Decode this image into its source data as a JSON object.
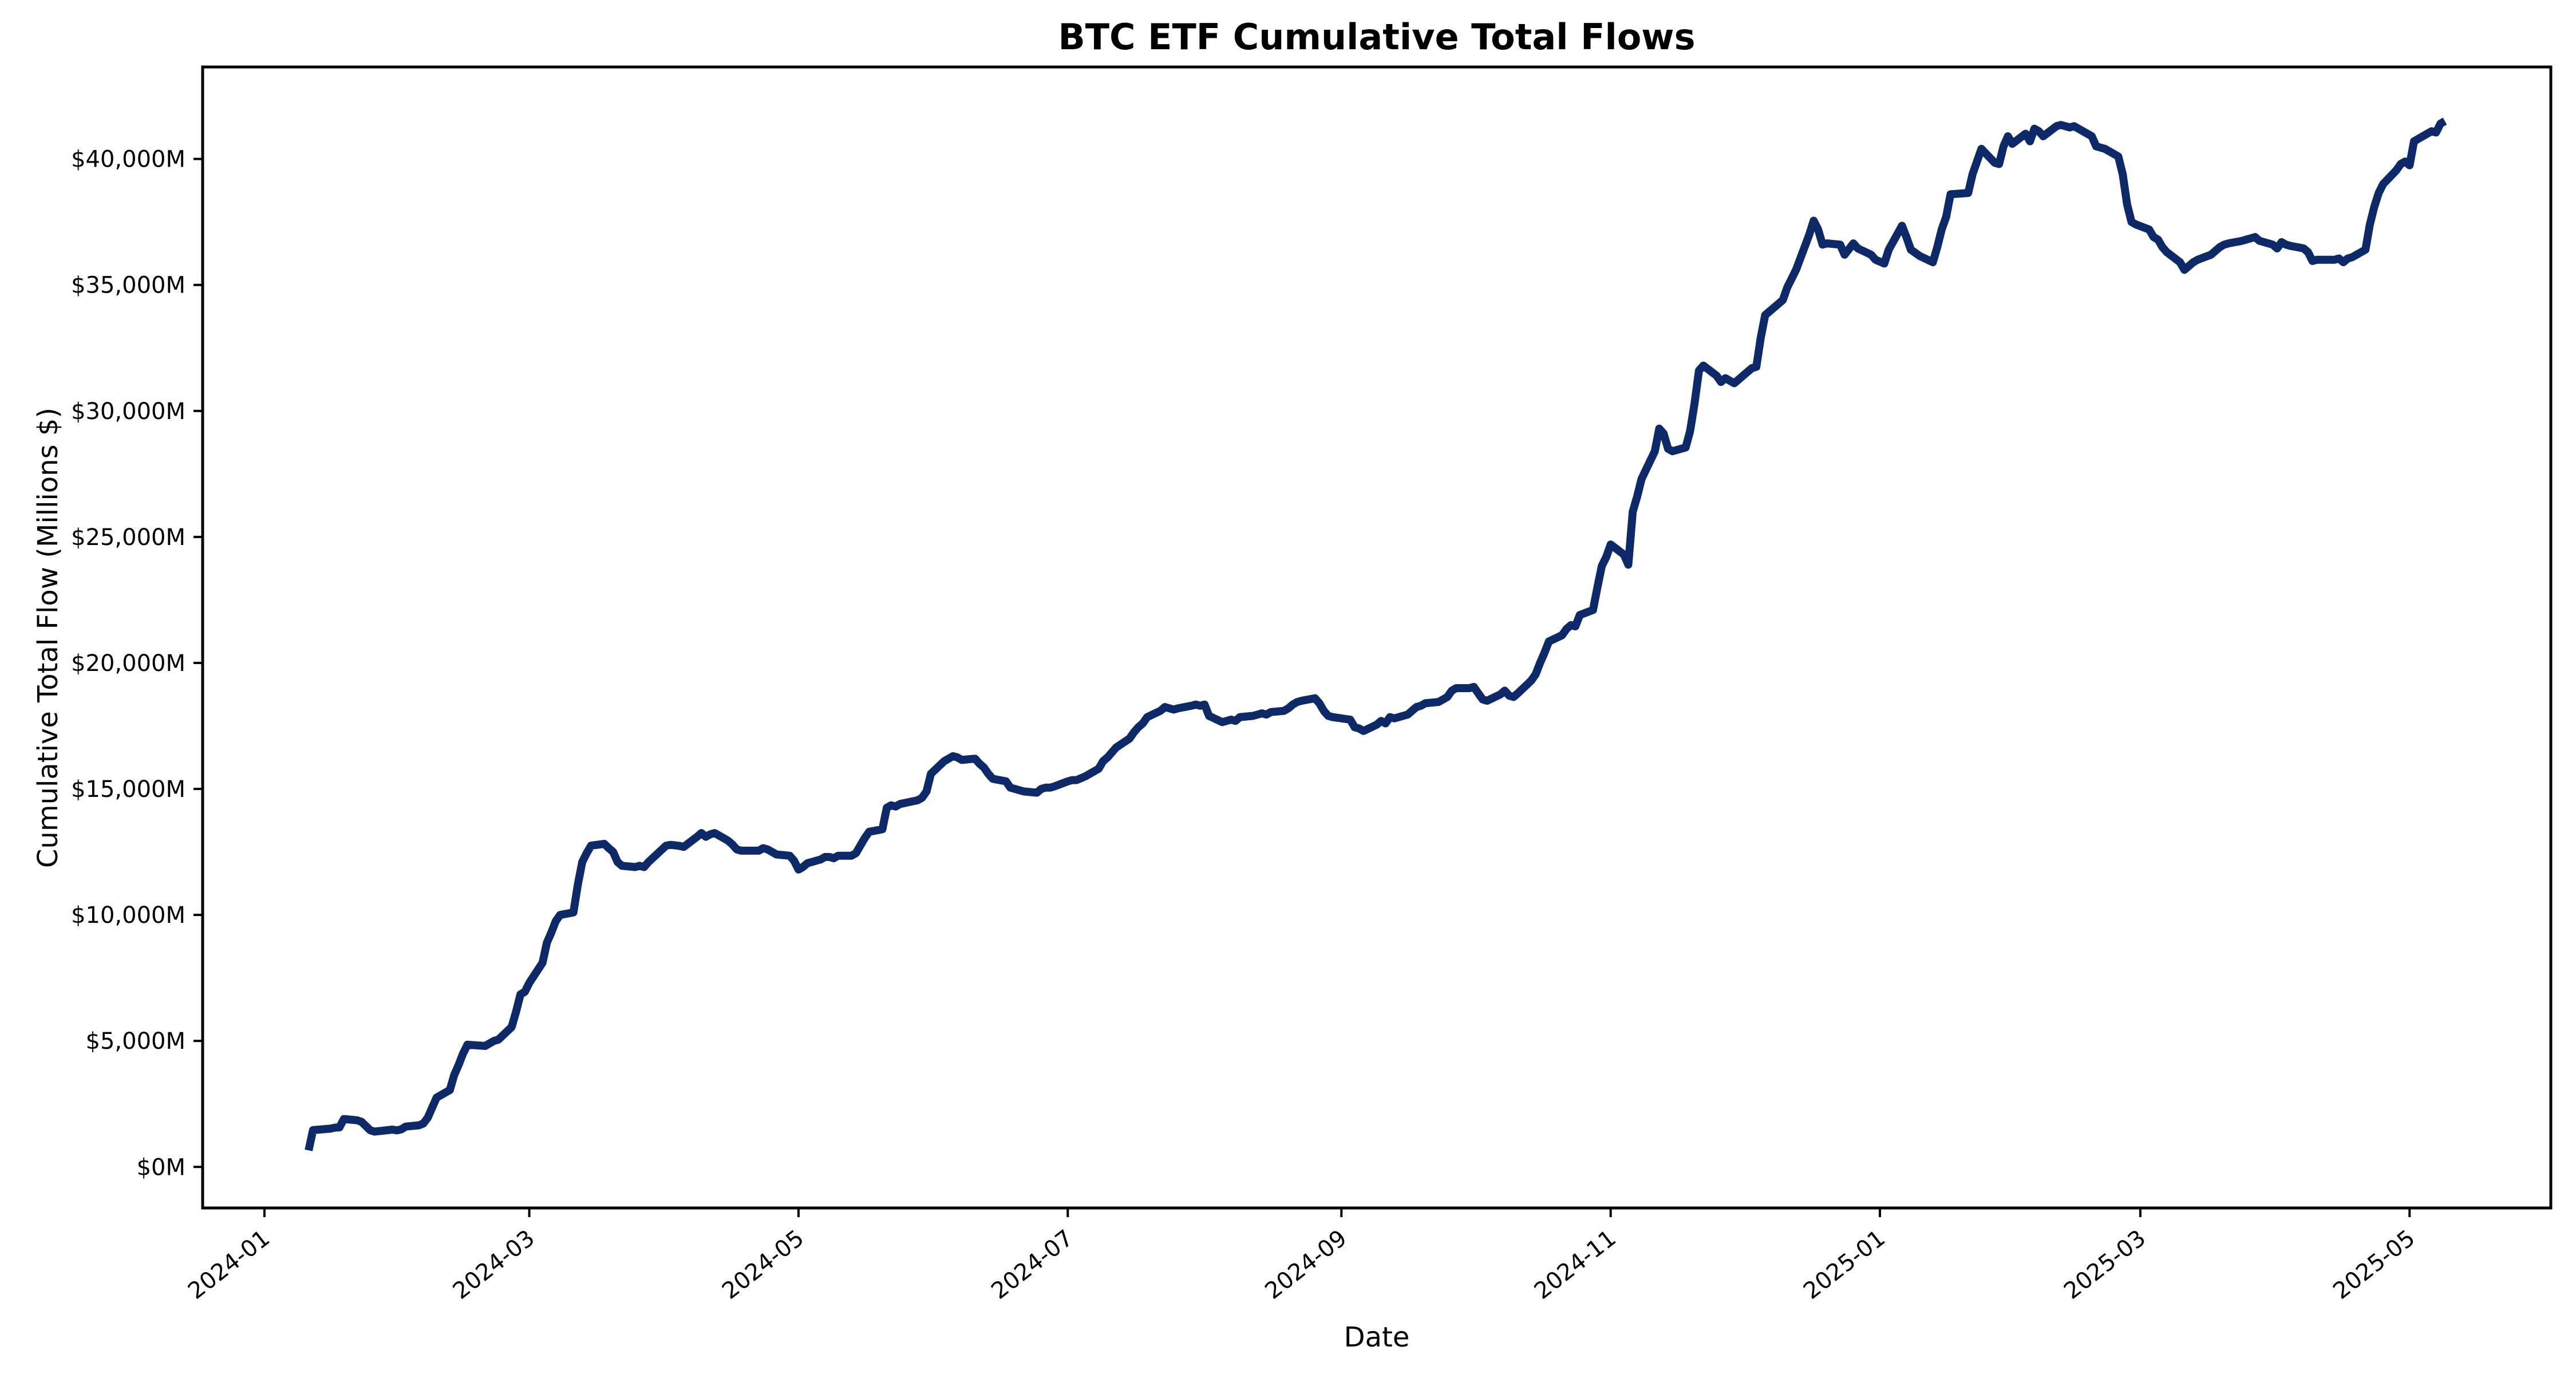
{
  "page": {
    "kind": "matplotlib-style line chart",
    "background": "#ffffff"
  },
  "chart_data": {
    "type": "line",
    "title": "BTC ETF Cumulative Total Flows",
    "xlabel": "Date",
    "ylabel": "Cumulative Total Flow (Millions $)",
    "series": [
      {
        "name": "Cumulative Total Flow",
        "color": "#0d2968"
      }
    ],
    "legend_position": "none",
    "grid": false,
    "axis_color": "#000000",
    "line_width": 14,
    "xlim": [
      "2023-12-18",
      "2025-06-02"
    ],
    "ylim": [
      -1630,
      43650
    ],
    "yticks": [
      {
        "value": 0,
        "label": "$0M"
      },
      {
        "value": 5000,
        "label": "$5,000M"
      },
      {
        "value": 10000,
        "label": "$10,000M"
      },
      {
        "value": 15000,
        "label": "$15,000M"
      },
      {
        "value": 20000,
        "label": "$20,000M"
      },
      {
        "value": 25000,
        "label": "$25,000M"
      },
      {
        "value": 30000,
        "label": "$30,000M"
      },
      {
        "value": 35000,
        "label": "$35,000M"
      },
      {
        "value": 40000,
        "label": "$40,000M"
      }
    ],
    "xticks": [
      {
        "date": "2024-01-01",
        "label": "2024-01"
      },
      {
        "date": "2024-03-01",
        "label": "2024-03"
      },
      {
        "date": "2024-05-01",
        "label": "2024-05"
      },
      {
        "date": "2024-07-01",
        "label": "2024-07"
      },
      {
        "date": "2024-09-01",
        "label": "2024-09"
      },
      {
        "date": "2024-11-01",
        "label": "2024-11"
      },
      {
        "date": "2025-01-01",
        "label": "2025-01"
      },
      {
        "date": "2025-03-01",
        "label": "2025-03"
      },
      {
        "date": "2025-05-01",
        "label": "2025-05"
      }
    ],
    "dates": [
      "2024-01-11",
      "2024-01-12",
      "2024-01-16",
      "2024-01-17",
      "2024-01-18",
      "2024-01-19",
      "2024-01-22",
      "2024-01-23",
      "2024-01-24",
      "2024-01-25",
      "2024-01-26",
      "2024-01-29",
      "2024-01-30",
      "2024-01-31",
      "2024-02-01",
      "2024-02-02",
      "2024-02-05",
      "2024-02-06",
      "2024-02-07",
      "2024-02-08",
      "2024-02-09",
      "2024-02-12",
      "2024-02-13",
      "2024-02-14",
      "2024-02-15",
      "2024-02-16",
      "2024-02-20",
      "2024-02-21",
      "2024-02-22",
      "2024-02-23",
      "2024-02-26",
      "2024-02-27",
      "2024-02-28",
      "2024-02-29",
      "2024-03-01",
      "2024-03-04",
      "2024-03-05",
      "2024-03-06",
      "2024-03-07",
      "2024-03-08",
      "2024-03-11",
      "2024-03-12",
      "2024-03-13",
      "2024-03-14",
      "2024-03-15",
      "2024-03-18",
      "2024-03-19",
      "2024-03-20",
      "2024-03-21",
      "2024-03-22",
      "2024-03-25",
      "2024-03-26",
      "2024-03-27",
      "2024-03-28",
      "2024-04-01",
      "2024-04-02",
      "2024-04-03",
      "2024-04-04",
      "2024-04-05",
      "2024-04-08",
      "2024-04-09",
      "2024-04-10",
      "2024-04-11",
      "2024-04-12",
      "2024-04-15",
      "2024-04-16",
      "2024-04-17",
      "2024-04-18",
      "2024-04-19",
      "2024-04-22",
      "2024-04-23",
      "2024-04-24",
      "2024-04-25",
      "2024-04-26",
      "2024-04-29",
      "2024-04-30",
      "2024-05-01",
      "2024-05-02",
      "2024-05-03",
      "2024-05-06",
      "2024-05-07",
      "2024-05-08",
      "2024-05-09",
      "2024-05-10",
      "2024-05-13",
      "2024-05-14",
      "2024-05-15",
      "2024-05-16",
      "2024-05-17",
      "2024-05-20",
      "2024-05-21",
      "2024-05-22",
      "2024-05-23",
      "2024-05-24",
      "2024-05-28",
      "2024-05-29",
      "2024-05-30",
      "2024-05-31",
      "2024-06-03",
      "2024-06-04",
      "2024-06-05",
      "2024-06-06",
      "2024-06-07",
      "2024-06-10",
      "2024-06-11",
      "2024-06-12",
      "2024-06-13",
      "2024-06-14",
      "2024-06-17",
      "2024-06-18",
      "2024-06-20",
      "2024-06-21",
      "2024-06-24",
      "2024-06-25",
      "2024-06-26",
      "2024-06-27",
      "2024-06-28",
      "2024-07-01",
      "2024-07-02",
      "2024-07-03",
      "2024-07-05",
      "2024-07-08",
      "2024-07-09",
      "2024-07-10",
      "2024-07-11",
      "2024-07-12",
      "2024-07-15",
      "2024-07-16",
      "2024-07-17",
      "2024-07-18",
      "2024-07-19",
      "2024-07-22",
      "2024-07-23",
      "2024-07-24",
      "2024-07-25",
      "2024-07-26",
      "2024-07-29",
      "2024-07-30",
      "2024-07-31",
      "2024-08-01",
      "2024-08-02",
      "2024-08-05",
      "2024-08-06",
      "2024-08-07",
      "2024-08-08",
      "2024-08-09",
      "2024-08-12",
      "2024-08-13",
      "2024-08-14",
      "2024-08-15",
      "2024-08-16",
      "2024-08-19",
      "2024-08-20",
      "2024-08-21",
      "2024-08-22",
      "2024-08-23",
      "2024-08-26",
      "2024-08-27",
      "2024-08-28",
      "2024-08-29",
      "2024-08-30",
      "2024-09-03",
      "2024-09-04",
      "2024-09-05",
      "2024-09-06",
      "2024-09-09",
      "2024-09-10",
      "2024-09-11",
      "2024-09-12",
      "2024-09-13",
      "2024-09-16",
      "2024-09-17",
      "2024-09-18",
      "2024-09-19",
      "2024-09-20",
      "2024-09-23",
      "2024-09-24",
      "2024-09-25",
      "2024-09-26",
      "2024-09-27",
      "2024-09-30",
      "2024-10-01",
      "2024-10-02",
      "2024-10-03",
      "2024-10-04",
      "2024-10-07",
      "2024-10-08",
      "2024-10-09",
      "2024-10-10",
      "2024-10-11",
      "2024-10-14",
      "2024-10-15",
      "2024-10-16",
      "2024-10-17",
      "2024-10-18",
      "2024-10-21",
      "2024-10-22",
      "2024-10-23",
      "2024-10-24",
      "2024-10-25",
      "2024-10-28",
      "2024-10-29",
      "2024-10-30",
      "2024-10-31",
      "2024-11-01",
      "2024-11-04",
      "2024-11-05",
      "2024-11-06",
      "2024-11-07",
      "2024-11-08",
      "2024-11-11",
      "2024-11-12",
      "2024-11-13",
      "2024-11-14",
      "2024-11-15",
      "2024-11-18",
      "2024-11-19",
      "2024-11-20",
      "2024-11-21",
      "2024-11-22",
      "2024-11-25",
      "2024-11-26",
      "2024-11-27",
      "2024-11-29",
      "2024-12-02",
      "2024-12-03",
      "2024-12-04",
      "2024-12-05",
      "2024-12-06",
      "2024-12-09",
      "2024-12-10",
      "2024-12-11",
      "2024-12-12",
      "2024-12-13",
      "2024-12-16",
      "2024-12-17",
      "2024-12-18",
      "2024-12-19",
      "2024-12-20",
      "2024-12-23",
      "2024-12-24",
      "2024-12-26",
      "2024-12-27",
      "2024-12-30",
      "2024-12-31",
      "2025-01-02",
      "2025-01-03",
      "2025-01-06",
      "2025-01-07",
      "2025-01-08",
      "2025-01-10",
      "2025-01-13",
      "2025-01-14",
      "2025-01-15",
      "2025-01-16",
      "2025-01-17",
      "2025-01-21",
      "2025-01-22",
      "2025-01-23",
      "2025-01-24",
      "2025-01-27",
      "2025-01-28",
      "2025-01-29",
      "2025-01-30",
      "2025-01-31",
      "2025-02-03",
      "2025-02-04",
      "2025-02-05",
      "2025-02-06",
      "2025-02-07",
      "2025-02-10",
      "2025-02-11",
      "2025-02-12",
      "2025-02-13",
      "2025-02-14",
      "2025-02-18",
      "2025-02-19",
      "2025-02-20",
      "2025-02-21",
      "2025-02-24",
      "2025-02-25",
      "2025-02-26",
      "2025-02-27",
      "2025-02-28",
      "2025-03-03",
      "2025-03-04",
      "2025-03-05",
      "2025-03-06",
      "2025-03-07",
      "2025-03-10",
      "2025-03-11",
      "2025-03-12",
      "2025-03-13",
      "2025-03-14",
      "2025-03-17",
      "2025-03-18",
      "2025-03-19",
      "2025-03-20",
      "2025-03-21",
      "2025-03-24",
      "2025-03-25",
      "2025-03-26",
      "2025-03-27",
      "2025-03-28",
      "2025-03-31",
      "2025-04-01",
      "2025-04-02",
      "2025-04-03",
      "2025-04-04",
      "2025-04-07",
      "2025-04-08",
      "2025-04-09",
      "2025-04-10",
      "2025-04-11",
      "2025-04-14",
      "2025-04-15",
      "2025-04-16",
      "2025-04-17",
      "2025-04-18",
      "2025-04-21",
      "2025-04-22",
      "2025-04-23",
      "2025-04-24",
      "2025-04-25",
      "2025-04-28",
      "2025-04-29",
      "2025-04-30",
      "2025-05-01",
      "2025-05-02",
      "2025-05-05",
      "2025-05-06",
      "2025-05-07",
      "2025-05-08",
      "2025-05-09"
    ],
    "values_millions": [
      655,
      1460,
      1520,
      1560,
      1570,
      1900,
      1850,
      1790,
      1620,
      1450,
      1400,
      1460,
      1480,
      1450,
      1490,
      1600,
      1650,
      1720,
      1950,
      2350,
      2750,
      3050,
      3650,
      4050,
      4500,
      4850,
      4800,
      4900,
      5000,
      5050,
      5550,
      6150,
      6850,
      6950,
      7300,
      8100,
      8900,
      9300,
      9750,
      10000,
      10100,
      11200,
      12100,
      12450,
      12750,
      12820,
      12650,
      12500,
      12100,
      11950,
      11900,
      11950,
      11900,
      12100,
      12750,
      12780,
      12760,
      12740,
      12700,
      13100,
      13250,
      13100,
      13200,
      13250,
      12950,
      12800,
      12600,
      12550,
      12550,
      12550,
      12650,
      12600,
      12500,
      12400,
      12350,
      12150,
      11800,
      11900,
      12050,
      12200,
      12300,
      12300,
      12250,
      12350,
      12350,
      12450,
      12750,
      13050,
      13300,
      13400,
      14250,
      14350,
      14300,
      14400,
      14550,
      14650,
      14900,
      15600,
      16100,
      16200,
      16300,
      16250,
      16150,
      16200,
      16000,
      15850,
      15600,
      15400,
      15300,
      15050,
      14950,
      14900,
      14850,
      15000,
      15050,
      15050,
      15100,
      15300,
      15350,
      15350,
      15500,
      15800,
      16100,
      16250,
      16450,
      16650,
      17000,
      17250,
      17450,
      17600,
      17850,
      18100,
      18250,
      18200,
      18150,
      18200,
      18300,
      18350,
      18300,
      18350,
      17900,
      17650,
      17700,
      17750,
      17700,
      17850,
      17900,
      17950,
      18000,
      17950,
      18050,
      18100,
      18200,
      18350,
      18450,
      18500,
      18600,
      18400,
      18100,
      17900,
      17850,
      17750,
      17450,
      17400,
      17300,
      17550,
      17700,
      17600,
      17850,
      17800,
      17950,
      18100,
      18250,
      18300,
      18400,
      18450,
      18550,
      18650,
      18900,
      19000,
      19000,
      19050,
      18800,
      18550,
      18500,
      18750,
      18900,
      18700,
      18650,
      18800,
      19300,
      19550,
      20000,
      20400,
      20850,
      21100,
      21350,
      21500,
      21450,
      21900,
      22100,
      23000,
      23850,
      24200,
      24700,
      24300,
      23900,
      26000,
      26600,
      27300,
      28400,
      29300,
      29100,
      28500,
      28400,
      28550,
      29200,
      30300,
      31600,
      31800,
      31400,
      31150,
      31300,
      31100,
      31550,
      31700,
      31750,
      32900,
      33800,
      34250,
      34400,
      34900,
      35250,
      35600,
      37000,
      37550,
      37200,
      36600,
      36650,
      36600,
      36200,
      36650,
      36450,
      36200,
      36000,
      35850,
      36400,
      37350,
      36900,
      36400,
      36150,
      35900,
      36500,
      37200,
      37700,
      38600,
      38650,
      39400,
      39900,
      40400,
      39850,
      39800,
      40500,
      40900,
      40600,
      41000,
      40700,
      41200,
      41100,
      40900,
      41300,
      41350,
      41300,
      41250,
      41300,
      40900,
      40500,
      40450,
      40400,
      40100,
      39400,
      38200,
      37500,
      37400,
      37200,
      36900,
      36800,
      36500,
      36300,
      35900,
      35600,
      35750,
      35900,
      36000,
      36200,
      36350,
      36500,
      36600,
      36650,
      36750,
      36800,
      36850,
      36900,
      36750,
      36600,
      36450,
      36700,
      36600,
      36550,
      36450,
      36300,
      35950,
      36000,
      36000,
      36000,
      36050,
      35900,
      36050,
      36100,
      36400,
      37400,
      38100,
      38650,
      39000,
      39550,
      39800,
      39900,
      39750,
      40700,
      41000,
      41100,
      41050,
      41400,
      41500
    ]
  }
}
